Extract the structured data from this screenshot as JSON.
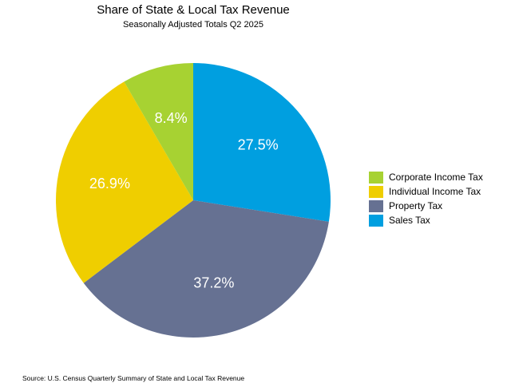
{
  "chart_data": {
    "type": "pie",
    "title": "Share of State & Local Tax Revenue",
    "subtitle": "Seasonally Adjusted Totals Q2 2025",
    "start_angle": "12 o'clock",
    "direction": "clockwise",
    "slices": [
      {
        "name": "Sales Tax",
        "value": 27.5,
        "label": "27.5%",
        "color": "#009fe0"
      },
      {
        "name": "Property Tax",
        "value": 37.2,
        "label": "37.2%",
        "color": "#667192"
      },
      {
        "name": "Individual Income Tax",
        "value": 26.9,
        "label": "26.9%",
        "color": "#efce00"
      },
      {
        "name": "Corporate Income Tax",
        "value": 8.4,
        "label": "8.4%",
        "color": "#a7d232"
      }
    ],
    "legend": {
      "placement": "right",
      "entries": [
        {
          "name": "Corporate Income Tax",
          "color": "#a7d232"
        },
        {
          "name": "Individual Income Tax",
          "color": "#efce00"
        },
        {
          "name": "Property Tax",
          "color": "#667192"
        },
        {
          "name": "Sales Tax",
          "color": "#009fe0"
        }
      ]
    },
    "source": "Source: U.S. Census Quarterly Summary of State and Local Tax Revenue"
  }
}
